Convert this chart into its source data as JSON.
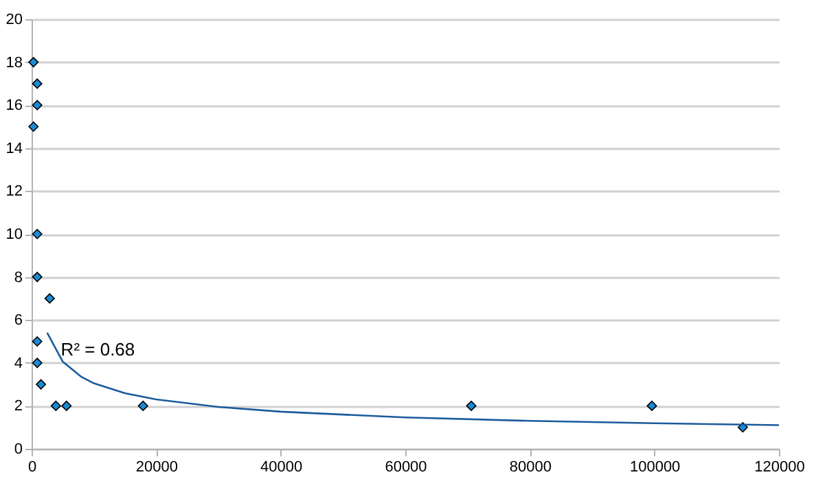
{
  "chart_data": {
    "type": "scatter",
    "series": [
      {
        "color": "#1a8ad4",
        "marker": "diamond",
        "x": [
          300,
          900,
          900,
          300,
          900,
          900,
          2900,
          900,
          900,
          1500,
          3900,
          5600,
          17900,
          70600,
          99600,
          114200
        ],
        "values": [
          18,
          17,
          16,
          15,
          10,
          8,
          7,
          5,
          4,
          3,
          2,
          2,
          2,
          2,
          2,
          1
        ]
      },
      {
        "type": "line",
        "color": "#1a5a9c",
        "line_style": "solid",
        "x": [
          2500,
          5000,
          8000,
          10000,
          15000,
          20000,
          30000,
          40000,
          60000,
          80000,
          100000,
          120000
        ],
        "values": [
          5.4,
          4.06,
          3.35,
          3.05,
          2.59,
          2.3,
          1.95,
          1.73,
          1.46,
          1.3,
          1.19,
          1.1
        ]
      }
    ],
    "annotations": [
      {
        "text": "R² = 0.68",
        "x": 4700,
        "y": 4.6
      }
    ],
    "xlim": [
      0,
      120000
    ],
    "xticks": [
      0,
      20000,
      40000,
      60000,
      80000,
      100000,
      120000
    ],
    "ylim": [
      0,
      20
    ],
    "yticks": [
      0,
      2,
      4,
      6,
      8,
      10,
      12,
      14,
      16,
      18,
      20
    ],
    "grid": "y"
  }
}
